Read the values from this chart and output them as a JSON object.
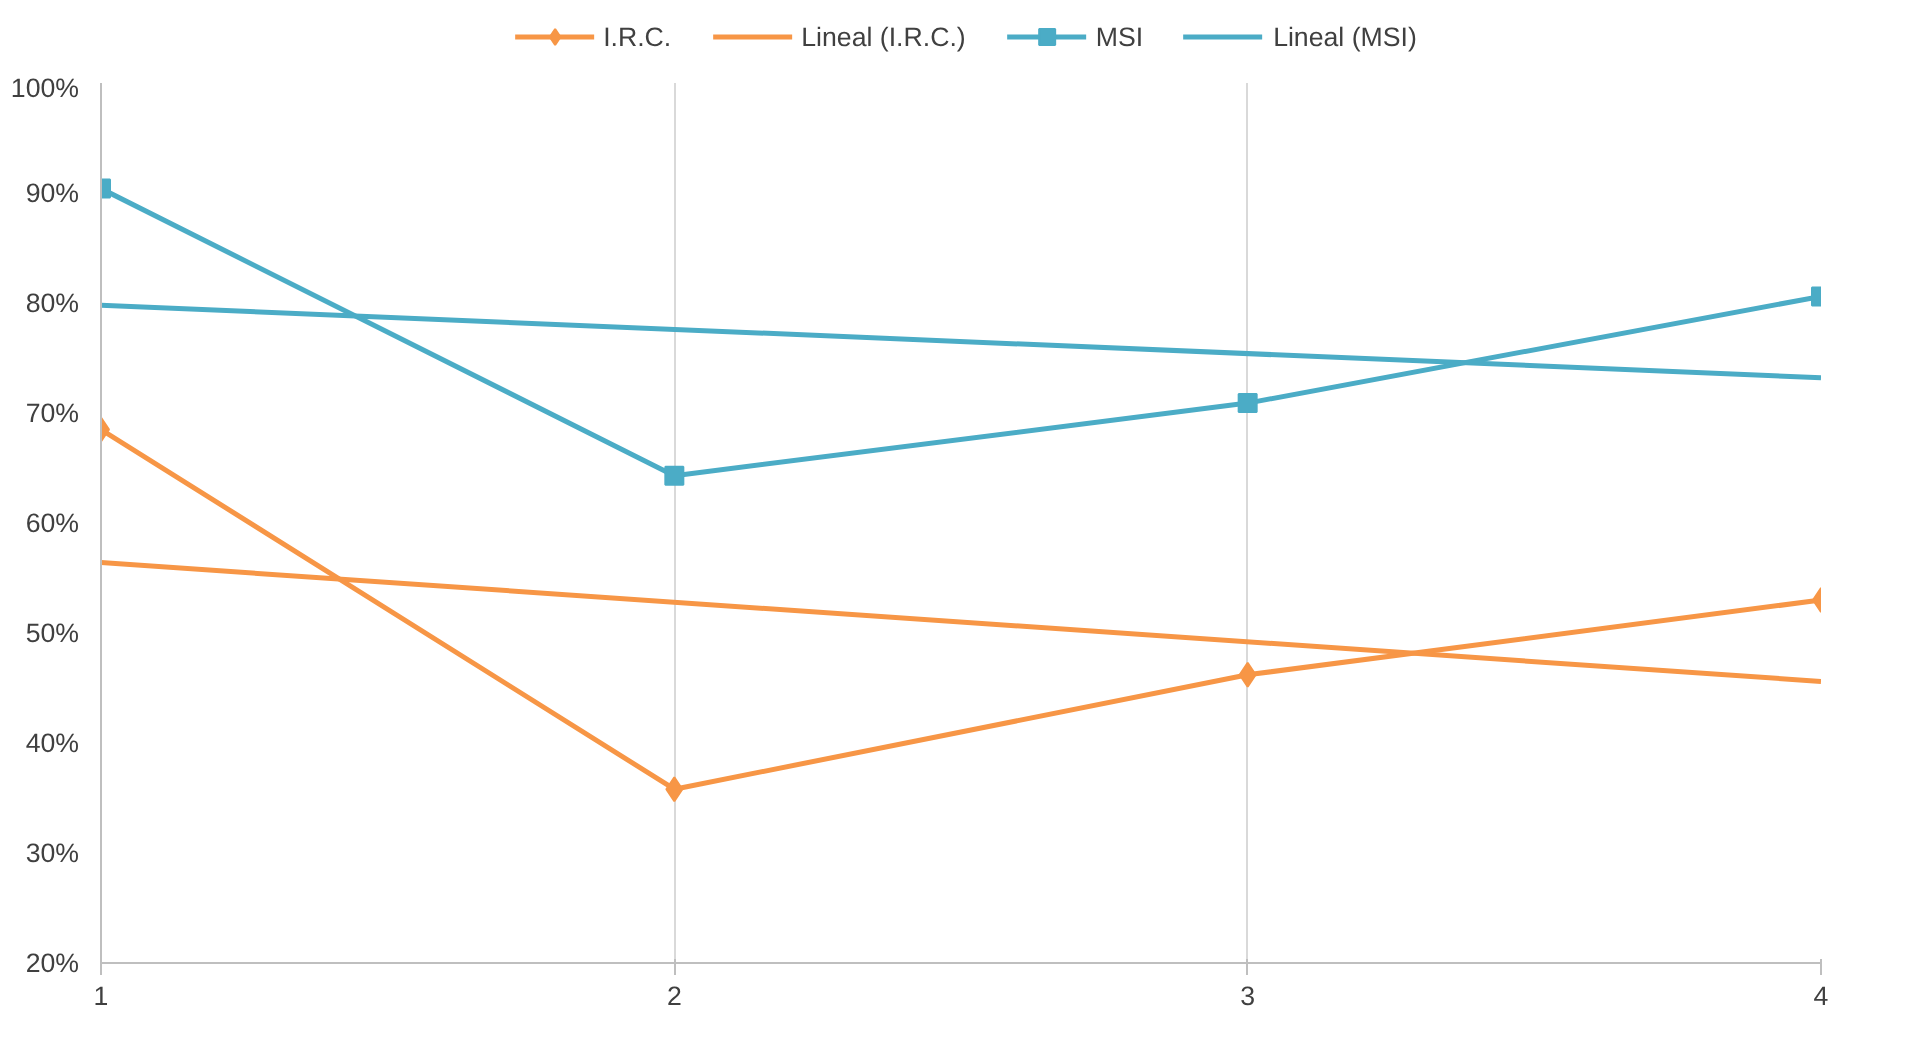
{
  "chart_data": {
    "type": "line",
    "xlim": [
      1,
      4
    ],
    "xticks": [
      1,
      2,
      3,
      4
    ],
    "ylim": [
      20,
      100
    ],
    "yticks": [
      {
        "value": 20,
        "label": "20%"
      },
      {
        "value": 30,
        "label": "30%"
      },
      {
        "value": 40,
        "label": "40%"
      },
      {
        "value": 50,
        "label": "50%"
      },
      {
        "value": 60,
        "label": "60%"
      },
      {
        "value": 70,
        "label": "70%"
      },
      {
        "value": 80,
        "label": "80%"
      },
      {
        "value": 90,
        "label": "90%"
      },
      {
        "value": 100,
        "label": "100%"
      }
    ],
    "grid": "x",
    "legend": "top",
    "series": [
      {
        "name": "I.R.C.",
        "color": "#f79646",
        "marker": "diamond",
        "x": [
          1,
          2,
          3,
          4
        ],
        "values": [
          68.5,
          35.8,
          46.2,
          53.0
        ]
      },
      {
        "name": "Lineal (I.R.C.)",
        "color": "#f79646",
        "marker": "none",
        "x": [
          1,
          4
        ],
        "values": [
          56.4,
          45.6
        ]
      },
      {
        "name": "MSI",
        "color": "#4bacc6",
        "marker": "square",
        "x": [
          1,
          2,
          3,
          4
        ],
        "values": [
          90.4,
          64.3,
          70.9,
          80.6
        ]
      },
      {
        "name": "Lineal (MSI)",
        "color": "#4bacc6",
        "marker": "none",
        "x": [
          1,
          4
        ],
        "values": [
          79.8,
          73.2
        ]
      }
    ]
  }
}
